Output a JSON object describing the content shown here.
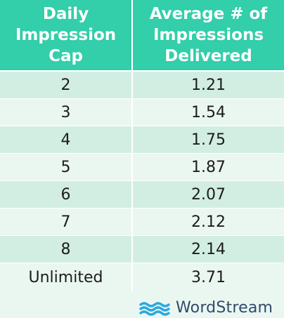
{
  "chart_data": {
    "type": "table",
    "columns": [
      "Daily Impression Cap",
      "Average # of Impressions Delivered"
    ],
    "header_lines": [
      [
        "Daily",
        "Impression",
        "Cap"
      ],
      [
        "Average # of",
        "Impressions",
        "Delivered"
      ]
    ],
    "rows": [
      [
        "2",
        "1.21"
      ],
      [
        "3",
        "1.54"
      ],
      [
        "4",
        "1.75"
      ],
      [
        "5",
        "1.87"
      ],
      [
        "6",
        "2.07"
      ],
      [
        "7",
        "2.12"
      ],
      [
        "8",
        "2.14"
      ],
      [
        "Unlimited",
        "3.71"
      ]
    ]
  },
  "brand": {
    "name": "WordStream",
    "icon": "wordstream-waves-icon",
    "color": "#2f4a6b",
    "icon_color": "#29a8df"
  },
  "colors": {
    "header_bg": "#33ceaa",
    "row_dark": "#d2eee2",
    "row_light": "#eaf7f1"
  }
}
